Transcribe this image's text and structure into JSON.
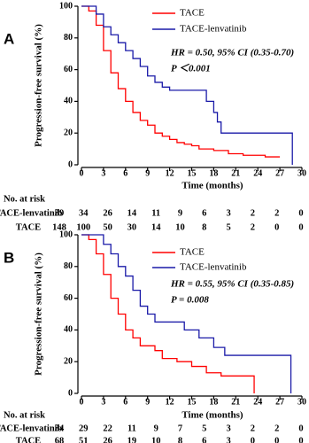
{
  "chart_data": [
    {
      "type": "step",
      "panel_label": "A",
      "y_label": "Progression-free survival (%)",
      "x_label": "Time (months)",
      "annotations": [
        "HR = 0.50, 95% CI (0.35-0.70)",
        "P ＜0.001"
      ],
      "xlim": [
        0,
        30
      ],
      "xticks": [
        0,
        3,
        6,
        9,
        12,
        15,
        18,
        21,
        24,
        27,
        30
      ],
      "ylim": [
        0,
        100
      ],
      "yticks": [
        0,
        20,
        40,
        60,
        80,
        100
      ],
      "legend": "top-right",
      "series": [
        {
          "name": "TACE",
          "color": "#ff0000",
          "x": [
            0,
            1,
            2,
            3,
            4,
            5,
            6,
            7,
            8,
            9,
            10,
            11,
            12,
            13,
            14,
            15,
            16,
            18,
            20,
            22,
            25,
            27
          ],
          "values": [
            100,
            97,
            88,
            72,
            58,
            48,
            40,
            33,
            28,
            25,
            20,
            18,
            16,
            14,
            13,
            12,
            10,
            9,
            7,
            6,
            5,
            5
          ]
        },
        {
          "name": "TACE-lenvatinib",
          "color": "#1a1aa8",
          "x": [
            0,
            1.5,
            2,
            3,
            4,
            5,
            6,
            7,
            8,
            9,
            10,
            11,
            12,
            17,
            18,
            18.5,
            19,
            28.7,
            28.7
          ],
          "values": [
            100,
            100,
            95,
            87,
            82,
            77,
            72,
            67,
            62,
            56,
            52,
            49,
            47,
            40,
            33,
            27,
            20,
            20,
            0
          ]
        }
      ],
      "risk_table": {
        "label": "No. at risk",
        "rows": [
          {
            "name": "TACE-lenvatinib",
            "values": [
              39,
              34,
              26,
              14,
              11,
              9,
              6,
              3,
              2,
              2,
              0
            ]
          },
          {
            "name": "TACE",
            "values": [
              148,
              100,
              50,
              30,
              14,
              10,
              8,
              5,
              2,
              0,
              0
            ]
          }
        ]
      }
    },
    {
      "type": "step",
      "panel_label": "B",
      "y_label": "Progression-free survival (%)",
      "x_label": "Time (months)",
      "annotations": [
        "HR = 0.55, 95% CI (0.35-0.85)",
        "P = 0.008"
      ],
      "xlim": [
        0,
        30
      ],
      "xticks": [
        0,
        3,
        6,
        9,
        12,
        15,
        18,
        21,
        24,
        27,
        30
      ],
      "ylim": [
        0,
        100
      ],
      "yticks": [
        0,
        20,
        40,
        60,
        80,
        100
      ],
      "legend": "top-right",
      "series": [
        {
          "name": "TACE",
          "color": "#ff0000",
          "x": [
            0,
            1,
            2,
            3,
            4,
            5,
            6,
            7,
            8,
            10,
            11,
            13,
            15,
            17,
            19,
            23.5,
            23.5
          ],
          "values": [
            100,
            97,
            88,
            75,
            60,
            50,
            40,
            35,
            30,
            27,
            22,
            20,
            17,
            13,
            11,
            11,
            0
          ]
        },
        {
          "name": "TACE-lenvatinib",
          "color": "#1a1aa8",
          "x": [
            0,
            2,
            3,
            4,
            5,
            6,
            7,
            8,
            9,
            10,
            14,
            16,
            18,
            19.5,
            28.5,
            28.5
          ],
          "values": [
            100,
            100,
            94,
            88,
            80,
            74,
            65,
            55,
            50,
            45,
            40,
            35,
            29,
            24,
            24,
            0
          ]
        }
      ],
      "risk_table": {
        "label": "No. at risk",
        "rows": [
          {
            "name": "TACE-lenvatinib",
            "values": [
              34,
              29,
              22,
              11,
              9,
              7,
              5,
              3,
              2,
              2,
              0
            ]
          },
          {
            "name": "TACE",
            "values": [
              68,
              51,
              26,
              19,
              10,
              8,
              6,
              3,
              0,
              0,
              0
            ]
          }
        ]
      }
    }
  ]
}
